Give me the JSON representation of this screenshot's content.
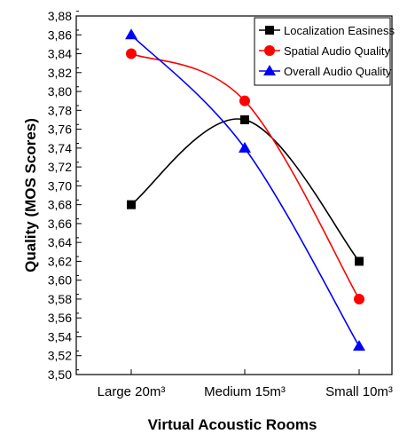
{
  "chart_data": {
    "type": "line",
    "xlabel": "Virtual Acoustic Rooms",
    "ylabel": "Quality (MOS Scores)",
    "categories": [
      "Large 20m³",
      "Medium 15m³",
      "Small 10m³"
    ],
    "ylim": [
      3.5,
      3.88
    ],
    "yticks": [
      "3,50",
      "3,52",
      "3,54",
      "3,56",
      "3,58",
      "3,60",
      "3,62",
      "3,64",
      "3,66",
      "3,68",
      "3,70",
      "3,72",
      "3,74",
      "3,76",
      "3,78",
      "3,80",
      "3,82",
      "3,84",
      "3,86",
      "3,88"
    ],
    "legend_position": "top-right",
    "grid": false,
    "series": [
      {
        "name": "Localization Easiness",
        "values": [
          3.68,
          3.77,
          3.62
        ],
        "color": "#000000",
        "marker": "square"
      },
      {
        "name": "Spatial Audio Quality",
        "values": [
          3.84,
          3.79,
          3.58
        ],
        "color": "#ff0000",
        "marker": "circle"
      },
      {
        "name": "Overall Audio Quality",
        "values": [
          3.86,
          3.74,
          3.53
        ],
        "color": "#0000ff",
        "marker": "triangle"
      }
    ]
  }
}
